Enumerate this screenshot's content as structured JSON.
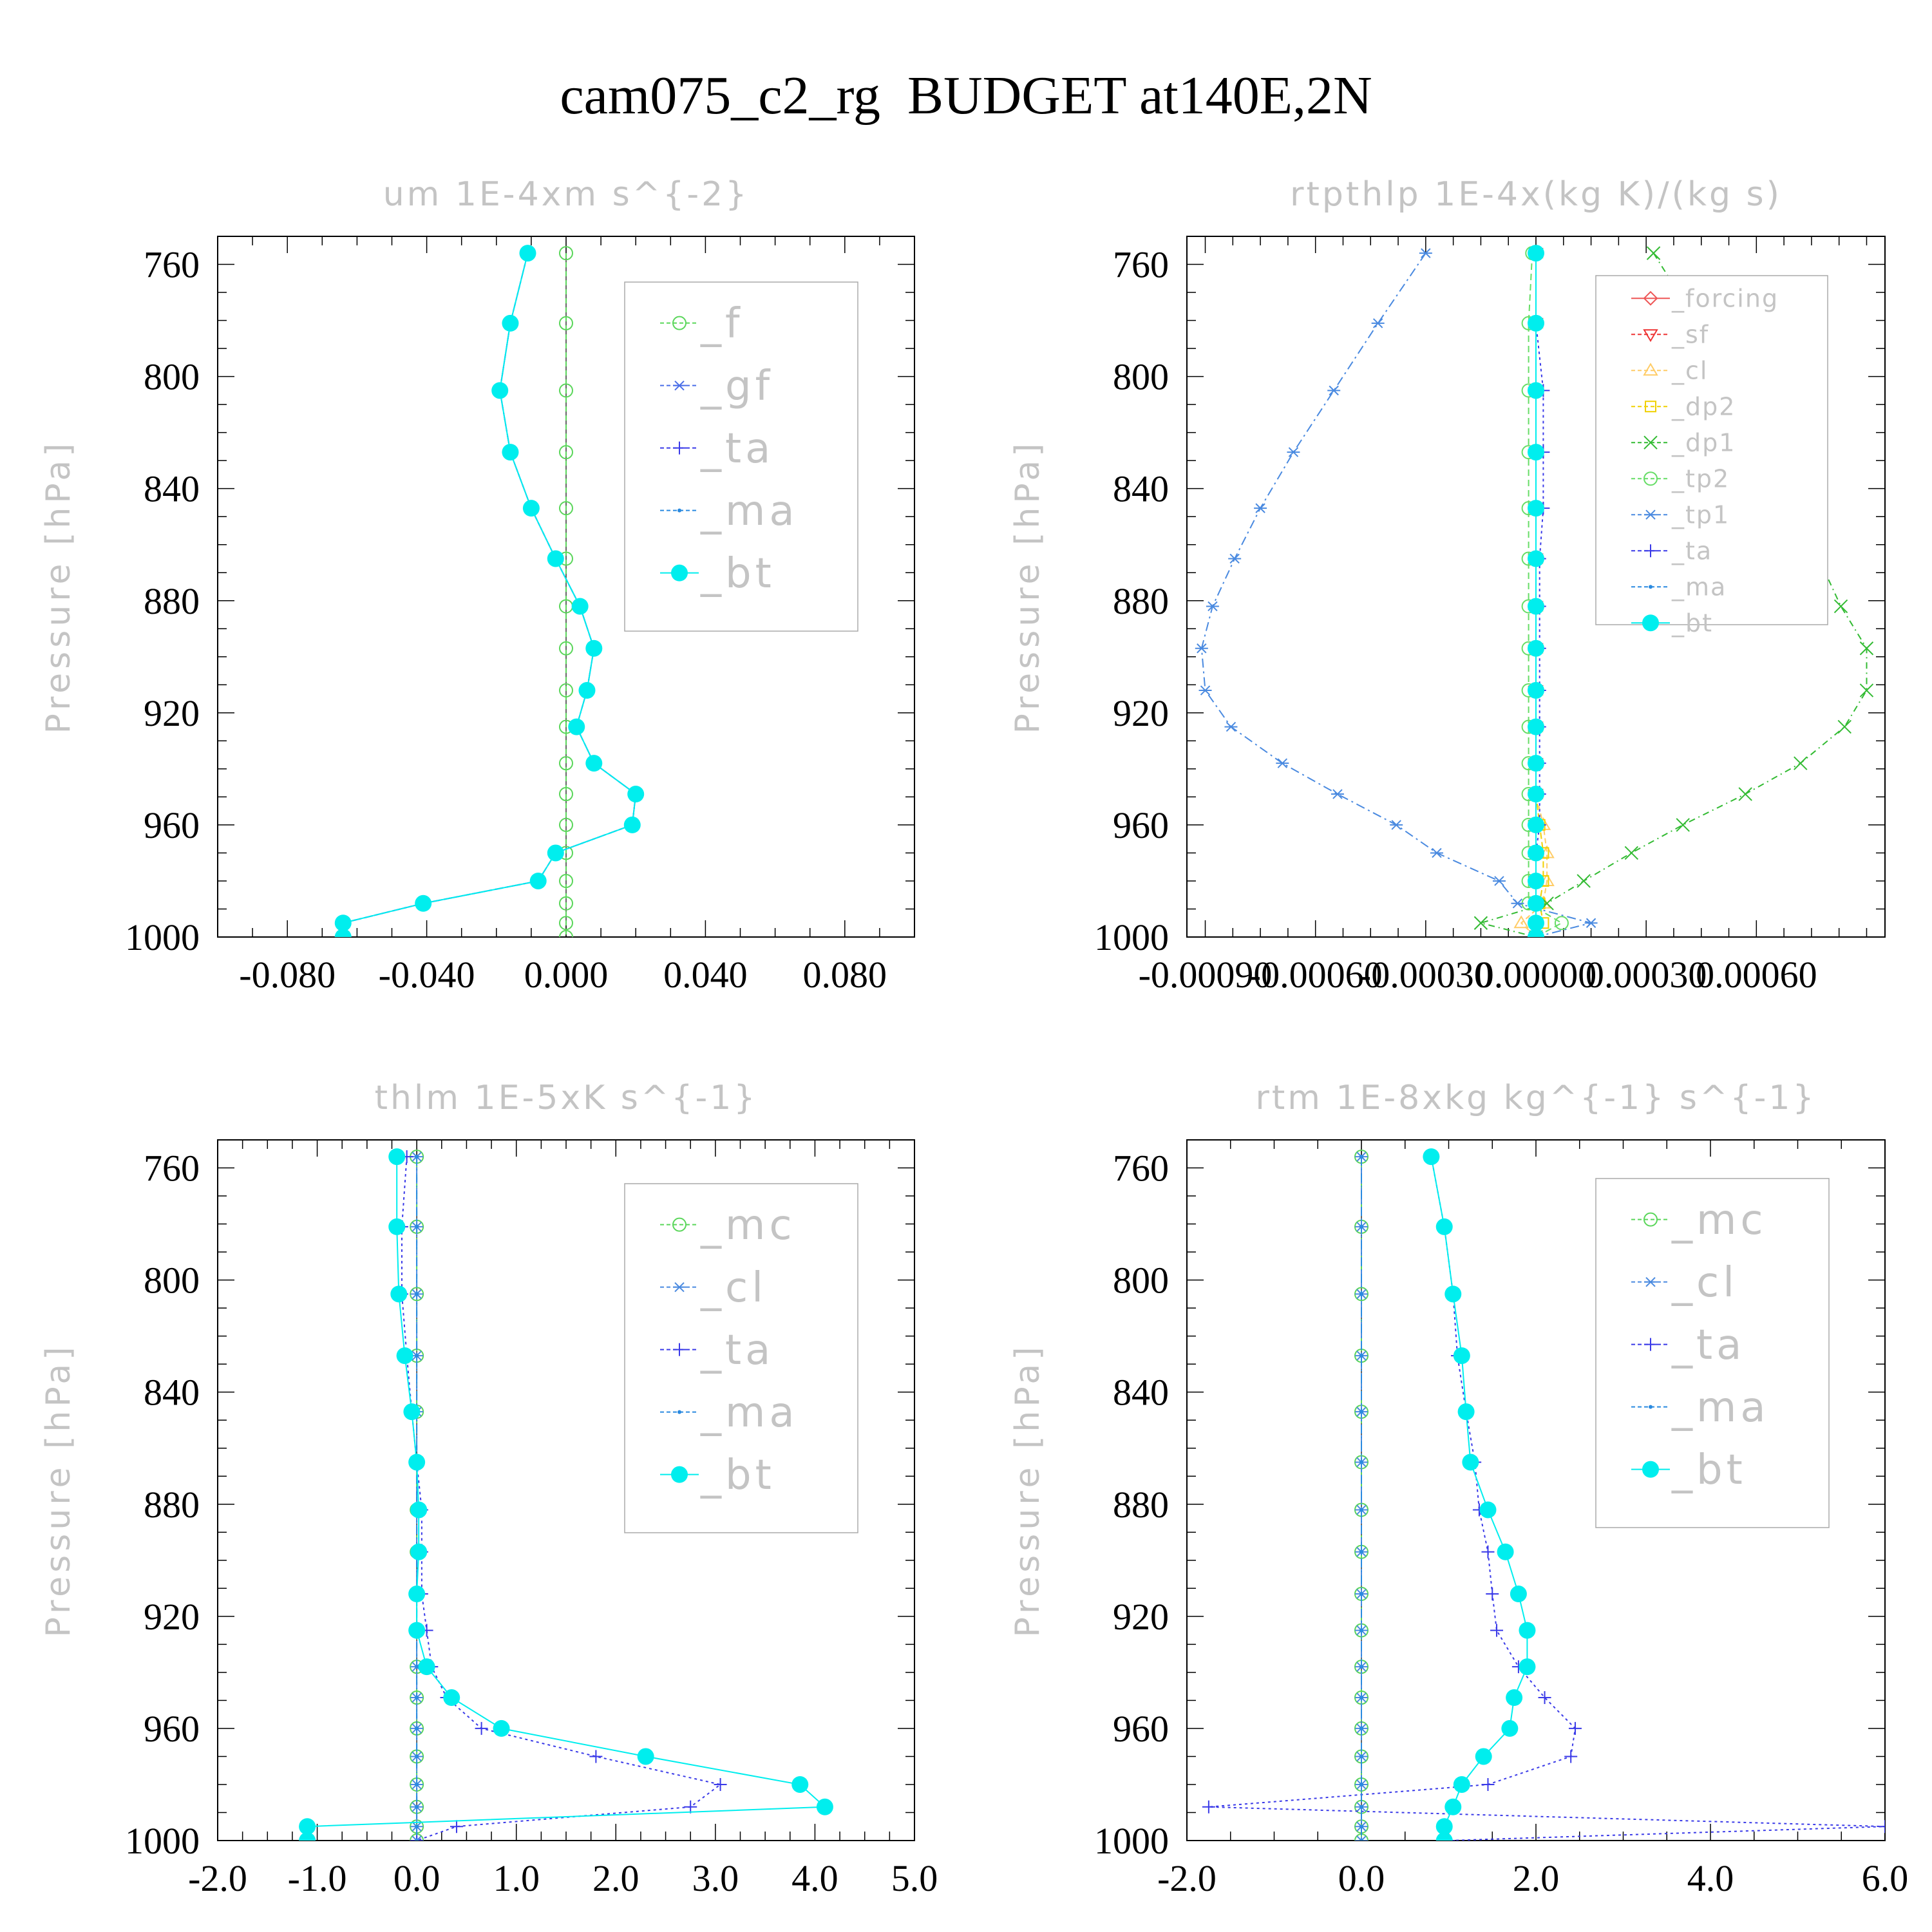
{
  "figure": {
    "title": "cam075_c2_rg  BUDGET at140E,2N"
  },
  "chart_data": [
    {
      "type": "line",
      "title": "um   1E-4xm s^{-2}",
      "ylabel": "Pressure [hPa]",
      "xlabel": "",
      "xlim": [
        -0.1,
        0.1
      ],
      "xticks": [
        -0.08,
        -0.04,
        0.0,
        0.04,
        0.08
      ],
      "xtick_labels": [
        "-0.080",
        "-0.040",
        "0.000",
        "0.040",
        "0.080"
      ],
      "ylim": [
        1000,
        750
      ],
      "yticks": [
        760,
        800,
        840,
        880,
        920,
        960,
        1000
      ],
      "grid": false,
      "legend_position": "top-right",
      "y": [
        756,
        781,
        805,
        827,
        847,
        865,
        882,
        897,
        912,
        925,
        938,
        949,
        960,
        970,
        980,
        988,
        995,
        1000
      ],
      "series": [
        {
          "name": "_f",
          "color": "#5ad65a",
          "marker": "circle-open",
          "dash": "8 6",
          "values": [
            0,
            0,
            0,
            0,
            0,
            0,
            0,
            0,
            0,
            0,
            0,
            0,
            0,
            0,
            0,
            0,
            0,
            0
          ]
        },
        {
          "name": "_gf",
          "color": "#4a6ee8",
          "marker": "star",
          "dash": "10 6",
          "values": [
            -0.011,
            -0.016,
            -0.019,
            -0.016,
            -0.01,
            -0.003,
            0.004,
            0.008,
            0.006,
            0.003,
            0.008,
            0.02,
            0.019,
            -0.003,
            -0.008,
            -0.041,
            -0.064,
            -0.064
          ]
        },
        {
          "name": "_ta",
          "color": "#3a3ae8",
          "marker": "plus",
          "dash": "4 5",
          "values": [
            -0.011,
            -0.016,
            -0.019,
            -0.016,
            -0.01,
            -0.003,
            0.004,
            0.008,
            0.006,
            0.003,
            0.008,
            0.02,
            0.019,
            -0.003,
            -0.008,
            -0.041,
            -0.064,
            -0.064
          ]
        },
        {
          "name": "_ma",
          "color": "#2a8ae0",
          "marker": "dot",
          "dash": "14 5 2 5",
          "values": [
            -0.011,
            -0.016,
            -0.019,
            -0.016,
            -0.01,
            -0.003,
            0.004,
            0.008,
            0.006,
            0.003,
            0.008,
            0.02,
            0.019,
            -0.003,
            -0.008,
            -0.041,
            -0.064,
            -0.064
          ]
        },
        {
          "name": "_bt",
          "color": "#00eeee",
          "marker": "filled",
          "dash": "",
          "values": [
            -0.011,
            -0.016,
            -0.019,
            -0.016,
            -0.01,
            -0.003,
            0.004,
            0.008,
            0.006,
            0.003,
            0.008,
            0.02,
            0.019,
            -0.003,
            -0.008,
            -0.041,
            -0.064,
            -0.064
          ]
        }
      ]
    },
    {
      "type": "line",
      "title": "rtpthlp   1E-4x(kg K)/(kg s)",
      "ylabel": "Pressure [hPa]",
      "xlabel": "",
      "xlim": [
        -0.00095,
        0.00095
      ],
      "xticks": [
        -0.0009,
        -0.0006,
        -0.0003,
        0.0,
        0.0003,
        0.0006
      ],
      "xtick_labels": [
        "-0.00090",
        "-0.00060",
        "-0.00030",
        "0.00000",
        "0.00030",
        "0.00060"
      ],
      "ylim": [
        1000,
        750
      ],
      "yticks": [
        760,
        800,
        840,
        880,
        920,
        960,
        1000
      ],
      "grid": false,
      "legend_position": "top-right",
      "y": [
        756,
        781,
        805,
        827,
        847,
        865,
        882,
        897,
        912,
        925,
        938,
        949,
        960,
        970,
        980,
        988,
        995,
        1000
      ],
      "series": [
        {
          "name": "_forcing",
          "color": "#ee5555",
          "marker": "diamond",
          "dash": "",
          "values": [
            0,
            0,
            0,
            0,
            0,
            0,
            0,
            0,
            0,
            0,
            0,
            0,
            0,
            0,
            0,
            0,
            0,
            0
          ]
        },
        {
          "name": "_sf",
          "color": "#ee3333",
          "marker": "tri-down",
          "dash": "6 5",
          "values": [
            0,
            0,
            0,
            0,
            0,
            0,
            0,
            0,
            0,
            0,
            0,
            0,
            0,
            0,
            0,
            0,
            0,
            0
          ]
        },
        {
          "name": "_cl",
          "color": "#ffcc66",
          "marker": "tri-up",
          "dash": "8 5",
          "values": [
            0,
            0,
            0,
            0,
            0,
            0,
            0,
            0,
            0,
            0,
            0,
            0,
            2e-05,
            3e-05,
            3e-05,
            2e-05,
            -4e-05,
            0
          ]
        },
        {
          "name": "_dp2",
          "color": "#f0d000",
          "marker": "square",
          "dash": "10 5",
          "values": [
            0,
            0,
            0,
            0,
            0,
            0,
            0,
            0,
            0,
            0,
            0,
            0,
            1e-05,
            2e-05,
            2e-05,
            1e-05,
            2e-05,
            0
          ]
        },
        {
          "name": "_dp1",
          "color": "#33bb33",
          "marker": "x",
          "dash": "10 6 2 6",
          "values": [
            0.00032,
            0.00044,
            0.00055,
            0.00064,
            0.00071,
            0.00077,
            0.00083,
            0.0009,
            0.0009,
            0.00084,
            0.00072,
            0.00057,
            0.0004,
            0.00026,
            0.00013,
            3e-05,
            -0.00015,
            0
          ]
        },
        {
          "name": "_tp2",
          "color": "#66dd66",
          "marker": "circle-open",
          "dash": "10 6",
          "values": [
            -1e-05,
            -2e-05,
            -2e-05,
            -2e-05,
            -2e-05,
            -2e-05,
            -2e-05,
            -2e-05,
            -2e-05,
            -2e-05,
            -2e-05,
            -2e-05,
            -2e-05,
            -2e-05,
            -2e-05,
            -2e-05,
            7e-05,
            0
          ]
        },
        {
          "name": "_tp1",
          "color": "#4a8ae0",
          "marker": "star",
          "dash": "14 6 3 6",
          "values": [
            -0.0003,
            -0.00043,
            -0.00055,
            -0.00066,
            -0.00075,
            -0.00082,
            -0.00088,
            -0.00091,
            -0.0009,
            -0.00083,
            -0.00069,
            -0.00054,
            -0.00038,
            -0.00027,
            -0.0001,
            -5e-05,
            0.00015,
            0
          ]
        },
        {
          "name": "_ta",
          "color": "#3a3ae8",
          "marker": "plus",
          "dash": "4 5",
          "values": [
            0,
            0,
            2e-05,
            2e-05,
            2e-05,
            1e-05,
            1e-05,
            1e-05,
            1e-05,
            1e-05,
            1e-05,
            1e-05,
            1e-05,
            0,
            0,
            0,
            0,
            0
          ]
        },
        {
          "name": "_ma",
          "color": "#2a8ae0",
          "marker": "dot",
          "dash": "14 5 2 5",
          "values": [
            0,
            0,
            0,
            0,
            0,
            0,
            0,
            0,
            0,
            0,
            0,
            0,
            0,
            0,
            0,
            0,
            0,
            0
          ]
        },
        {
          "name": "_bt",
          "color": "#00eeee",
          "marker": "filled",
          "dash": "",
          "values": [
            0,
            0,
            0,
            0,
            0,
            0,
            0,
            0,
            0,
            0,
            0,
            0,
            0,
            0,
            0,
            0,
            0,
            0
          ]
        }
      ]
    },
    {
      "type": "line",
      "title": "thlm   1E-5xK s^{-1}",
      "ylabel": "Pressure [hPa]",
      "xlabel": "",
      "xlim": [
        -2.0,
        5.0
      ],
      "xticks": [
        -2.0,
        -1.0,
        0.0,
        1.0,
        2.0,
        3.0,
        4.0,
        5.0
      ],
      "xtick_labels": [
        "-2.0",
        "-1.0",
        "0.0",
        "1.0",
        "2.0",
        "3.0",
        "4.0",
        "5.0"
      ],
      "ylim": [
        1000,
        750
      ],
      "yticks": [
        760,
        800,
        840,
        880,
        920,
        960,
        1000
      ],
      "grid": false,
      "legend_position": "top-right",
      "y": [
        756,
        781,
        805,
        827,
        847,
        865,
        882,
        897,
        912,
        925,
        938,
        949,
        960,
        970,
        980,
        988,
        995,
        1000
      ],
      "series": [
        {
          "name": "_mc",
          "color": "#5ad65a",
          "marker": "circle-open",
          "dash": "8 6",
          "values": [
            0,
            0,
            0,
            0,
            0,
            0,
            0,
            0,
            0,
            0,
            0,
            0,
            0,
            0,
            0,
            0,
            0,
            0
          ]
        },
        {
          "name": "_cl",
          "color": "#4a8ae0",
          "marker": "star",
          "dash": "10 6",
          "values": [
            0,
            0,
            0,
            0,
            0,
            0,
            0,
            0,
            0,
            0,
            0,
            0,
            0,
            0,
            0,
            0,
            0,
            0
          ]
        },
        {
          "name": "_ta",
          "color": "#3a3ae8",
          "marker": "plus",
          "dash": "4 5",
          "values": [
            -0.1,
            -0.15,
            -0.15,
            -0.1,
            -0.05,
            0.0,
            0.05,
            0.05,
            0.05,
            0.1,
            0.15,
            0.3,
            0.65,
            1.8,
            3.05,
            2.75,
            0.4,
            0.0
          ]
        },
        {
          "name": "_ma",
          "color": "#2a8ae0",
          "marker": "dot",
          "dash": "14 5 2 5",
          "values": [
            0,
            0,
            0,
            0,
            0,
            0,
            0,
            0,
            0,
            0,
            0,
            0,
            0,
            0,
            0,
            0,
            0,
            0
          ]
        },
        {
          "name": "_bt",
          "color": "#00eeee",
          "marker": "filled",
          "dash": "",
          "values": [
            -0.2,
            -0.2,
            -0.18,
            -0.12,
            -0.05,
            0.0,
            0.02,
            0.02,
            0.0,
            0.0,
            0.1,
            0.35,
            0.85,
            2.3,
            3.85,
            4.1,
            -1.1,
            -1.1
          ]
        }
      ]
    },
    {
      "type": "line",
      "title": "rtm   1E-8xkg kg^{-1} s^{-1}",
      "ylabel": "Pressure [hPa]",
      "xlabel": "",
      "xlim": [
        -2.0,
        6.0
      ],
      "xticks": [
        -2.0,
        0.0,
        2.0,
        4.0,
        6.0
      ],
      "xtick_labels": [
        "-2.0",
        "0.0",
        "2.0",
        "4.0",
        "6.0"
      ],
      "ylim": [
        1000,
        750
      ],
      "yticks": [
        760,
        800,
        840,
        880,
        920,
        960,
        1000
      ],
      "grid": false,
      "legend_position": "top-right",
      "y": [
        756,
        781,
        805,
        827,
        847,
        865,
        882,
        897,
        912,
        925,
        938,
        949,
        960,
        970,
        980,
        988,
        995,
        1000
      ],
      "series": [
        {
          "name": "_mc",
          "color": "#5ad65a",
          "marker": "circle-open",
          "dash": "8 6",
          "values": [
            0,
            0,
            0,
            0,
            0,
            0,
            0,
            0,
            0,
            0,
            0,
            0,
            0,
            0,
            0,
            0,
            0,
            0
          ]
        },
        {
          "name": "_cl",
          "color": "#4a8ae0",
          "marker": "star",
          "dash": "10 6",
          "values": [
            0,
            0,
            0,
            0,
            0,
            0,
            0,
            0,
            0,
            0,
            0,
            0,
            0,
            0,
            0,
            0,
            0,
            0
          ]
        },
        {
          "name": "_ta",
          "color": "#3a3ae8",
          "marker": "plus",
          "dash": "4 5",
          "values": [
            0.8,
            0.95,
            1.05,
            1.1,
            1.2,
            1.3,
            1.35,
            1.45,
            1.5,
            1.55,
            1.8,
            2.1,
            2.45,
            2.4,
            1.45,
            -1.75,
            6.0,
            1.0
          ]
        },
        {
          "name": "_ma",
          "color": "#2a8ae0",
          "marker": "dot",
          "dash": "14 5 2 5",
          "values": [
            0,
            0,
            0,
            0,
            0,
            0,
            0,
            0,
            0,
            0,
            0,
            0,
            0,
            0,
            0,
            0,
            0,
            0
          ]
        },
        {
          "name": "_bt",
          "color": "#00eeee",
          "marker": "filled",
          "dash": "",
          "values": [
            0.8,
            0.95,
            1.05,
            1.15,
            1.2,
            1.25,
            1.45,
            1.65,
            1.8,
            1.9,
            1.9,
            1.75,
            1.7,
            1.4,
            1.15,
            1.05,
            0.95,
            0.95
          ]
        }
      ]
    }
  ]
}
